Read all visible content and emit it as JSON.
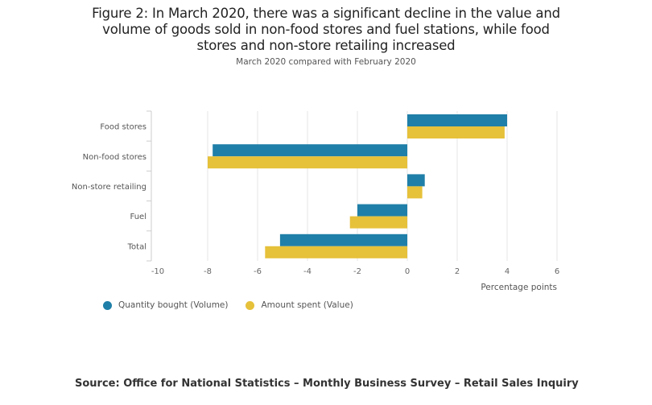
{
  "chart_data": {
    "type": "bar",
    "orientation": "horizontal",
    "title": "Figure 2: In March 2020, there was a significant decline in the value and volume of goods sold in non-food stores and fuel stations, while food stores and non-store retailing increased",
    "title_lines": [
      "Figure 2: In March 2020, there was a significant decline in the value and",
      "volume of goods sold in non-food stores and fuel stations, while food",
      "stores and non-store retailing increased"
    ],
    "subtitle": "March 2020 compared with February 2020",
    "categories": [
      "Food stores",
      "Non-food stores",
      "Non-store retailing",
      "Fuel",
      "Total"
    ],
    "series": [
      {
        "name": "Quantity bought (Volume)",
        "color": "#1f7fa8",
        "values": [
          4.0,
          -7.8,
          0.7,
          -2.0,
          -5.1
        ]
      },
      {
        "name": "Amount spent (Value)",
        "color": "#e6c13a",
        "values": [
          3.9,
          -8.0,
          0.6,
          -2.3,
          -5.7
        ]
      }
    ],
    "xlabel": "Percentage points",
    "ylabel": "",
    "xlim": [
      -10,
      6
    ],
    "xticks": [
      -10,
      -8,
      -6,
      -4,
      -2,
      0,
      2,
      4,
      6
    ],
    "grid": true,
    "legend_position": "bottom-left"
  },
  "source": "Source: Office for National Statistics – Monthly Business Survey – Retail Sales Inquiry"
}
